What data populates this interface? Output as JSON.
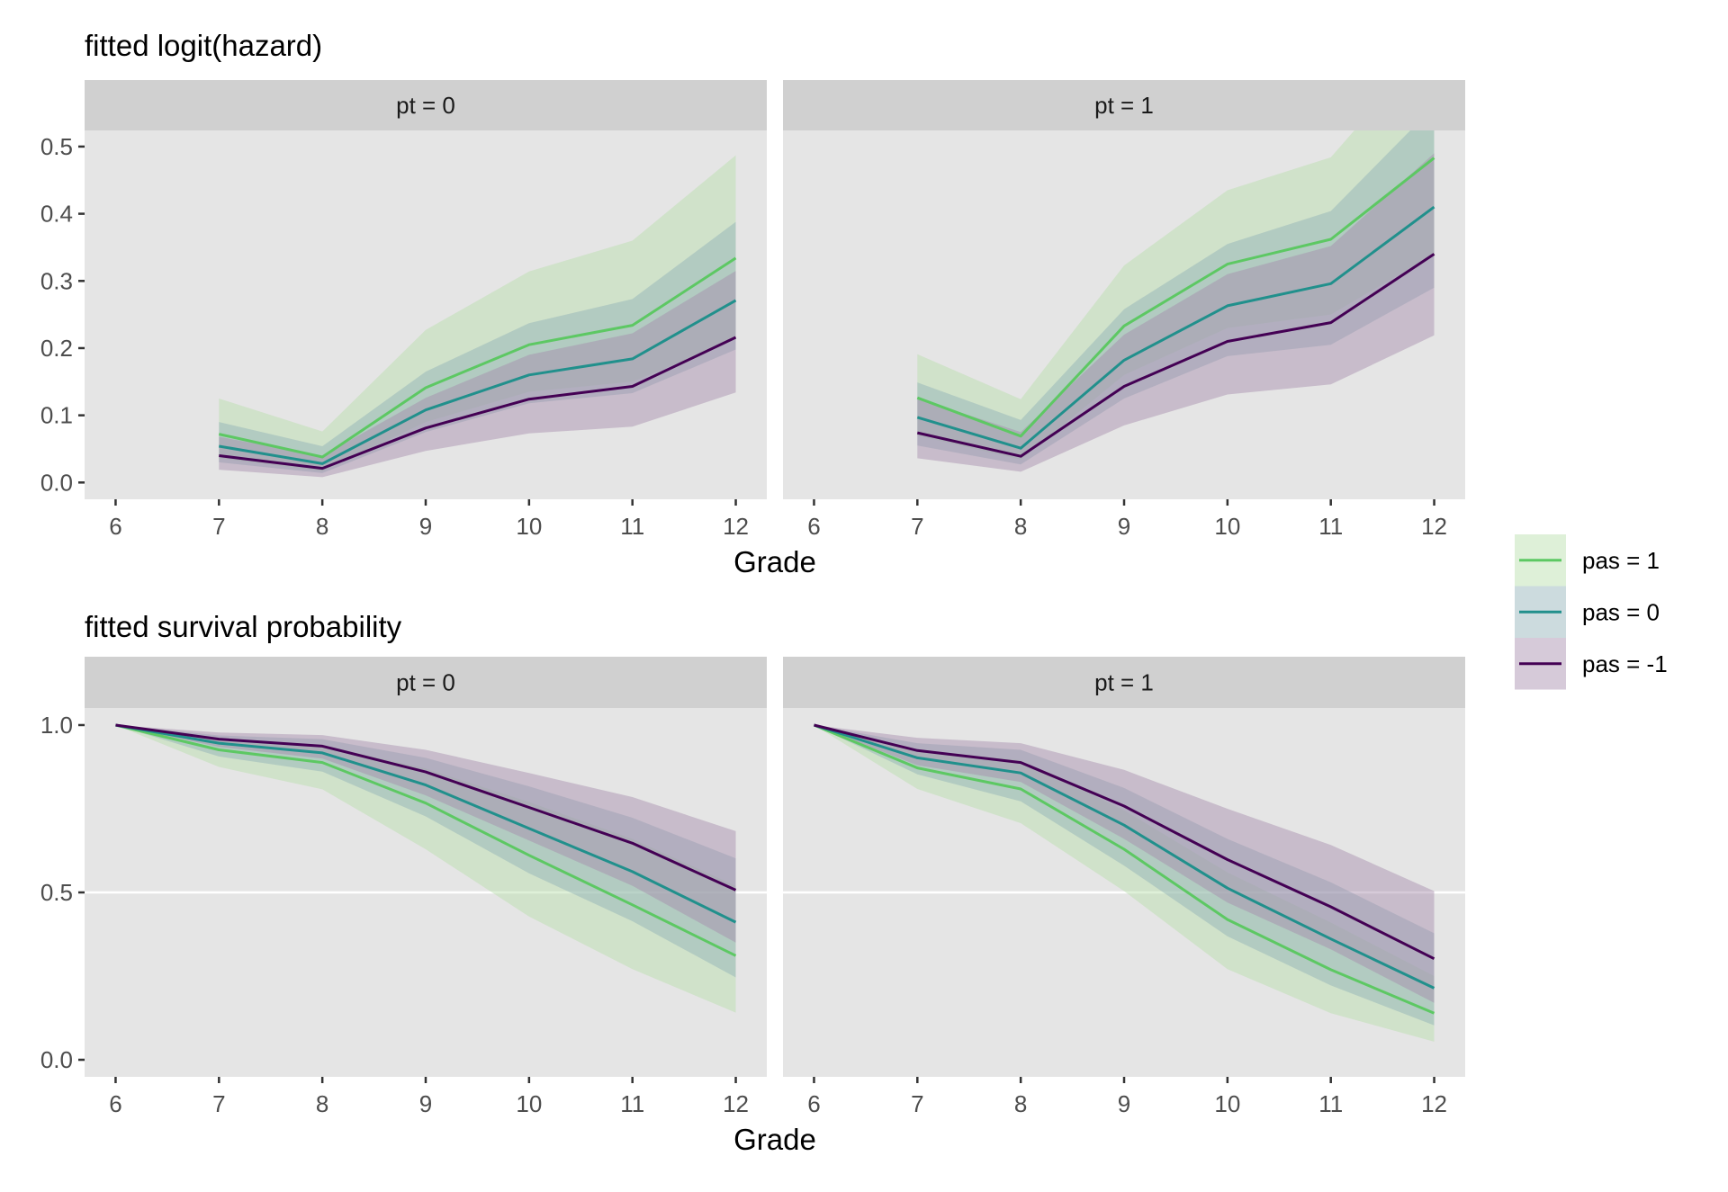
{
  "chart_data": [
    {
      "type": "line",
      "title": "fitted logit(hazard)",
      "xlabel": "Grade",
      "ylabel": "",
      "facet_variable": "pt",
      "facets": [
        "pt = 0",
        "pt = 1"
      ],
      "xlim": [
        5.7,
        12.3
      ],
      "ylim": [
        -0.025,
        0.524
      ],
      "x_ticks": [
        6,
        7,
        8,
        9,
        10,
        11,
        12
      ],
      "y_ticks": [
        0.0,
        0.1,
        0.2,
        0.3,
        0.4,
        0.5
      ],
      "y_tick_labels": [
        "0.0",
        "0.1",
        "0.2",
        "0.3",
        "0.4",
        "0.5"
      ],
      "grid": false,
      "x": [
        7,
        8,
        9,
        10,
        11,
        12
      ],
      "panels": [
        {
          "facet": "pt = 0",
          "series": [
            {
              "name": "pas = -1",
              "values": [
                0.04,
                0.021,
                0.081,
                0.124,
                0.143,
                0.216
              ],
              "lower": [
                0.019,
                0.008,
                0.047,
                0.073,
                0.083,
                0.134
              ],
              "upper": [
                0.068,
                0.04,
                0.126,
                0.19,
                0.222,
                0.315
              ]
            },
            {
              "name": "pas = 0",
              "values": [
                0.054,
                0.028,
                0.108,
                0.16,
                0.184,
                0.271
              ],
              "lower": [
                0.03,
                0.014,
                0.075,
                0.118,
                0.133,
                0.198
              ],
              "upper": [
                0.09,
                0.054,
                0.165,
                0.237,
                0.273,
                0.388
              ]
            },
            {
              "name": "pas = 1",
              "values": [
                0.072,
                0.038,
                0.141,
                0.205,
                0.234,
                0.334
              ],
              "lower": [
                0.036,
                0.017,
                0.09,
                0.135,
                0.15,
                0.213
              ],
              "upper": [
                0.125,
                0.076,
                0.227,
                0.314,
                0.36,
                0.487
              ]
            }
          ]
        },
        {
          "facet": "pt = 1",
          "series": [
            {
              "name": "pas = -1",
              "values": [
                0.074,
                0.039,
                0.143,
                0.21,
                0.238,
                0.34
              ],
              "lower": [
                0.036,
                0.016,
                0.085,
                0.131,
                0.146,
                0.219
              ],
              "upper": [
                0.125,
                0.075,
                0.22,
                0.31,
                0.352,
                0.49
              ]
            },
            {
              "name": "pas = 0",
              "values": [
                0.097,
                0.051,
                0.182,
                0.263,
                0.296,
                0.41
              ],
              "lower": [
                0.055,
                0.027,
                0.125,
                0.188,
                0.205,
                0.29
              ],
              "upper": [
                0.149,
                0.093,
                0.258,
                0.355,
                0.404,
                0.56
              ]
            },
            {
              "name": "pas = 1",
              "values": [
                0.126,
                0.069,
                0.233,
                0.325,
                0.362,
                0.483
              ],
              "lower": [
                0.07,
                0.034,
                0.16,
                0.23,
                0.25,
                0.34
              ],
              "upper": [
                0.191,
                0.124,
                0.323,
                0.435,
                0.484,
                0.66
              ]
            }
          ]
        }
      ]
    },
    {
      "type": "line",
      "title": "fitted survival probability",
      "xlabel": "Grade",
      "ylabel": "",
      "facet_variable": "pt",
      "facets": [
        "pt = 0",
        "pt = 1"
      ],
      "xlim": [
        5.7,
        12.3
      ],
      "ylim": [
        -0.051,
        1.051
      ],
      "x_ticks": [
        6,
        7,
        8,
        9,
        10,
        11,
        12
      ],
      "y_ticks": [
        0.0,
        0.5,
        1.0
      ],
      "y_tick_labels": [
        "0.0",
        "0.5",
        "1.0"
      ],
      "grid": false,
      "reference_line": 0.5,
      "x": [
        6,
        7,
        8,
        9,
        10,
        11,
        12
      ],
      "panels": [
        {
          "facet": "pt = 0",
          "series": [
            {
              "name": "pas = -1",
              "values": [
                1.0,
                0.958,
                0.937,
                0.86,
                0.754,
                0.647,
                0.507
              ],
              "lower": [
                1.0,
                0.935,
                0.9,
                0.79,
                0.655,
                0.52,
                0.35
              ],
              "upper": [
                1.0,
                0.978,
                0.97,
                0.926,
                0.857,
                0.785,
                0.683
              ]
            },
            {
              "name": "pas = 0",
              "values": [
                1.0,
                0.946,
                0.917,
                0.821,
                0.691,
                0.562,
                0.411
              ],
              "lower": [
                1.0,
                0.906,
                0.861,
                0.727,
                0.557,
                0.414,
                0.246
              ],
              "upper": [
                1.0,
                0.969,
                0.958,
                0.902,
                0.817,
                0.723,
                0.602
              ]
            },
            {
              "name": "pas = 1",
              "values": [
                1.0,
                0.926,
                0.888,
                0.767,
                0.611,
                0.463,
                0.311
              ],
              "lower": [
                1.0,
                0.875,
                0.808,
                0.629,
                0.428,
                0.271,
                0.141
              ],
              "upper": [
                1.0,
                0.96,
                0.94,
                0.87,
                0.77,
                0.66,
                0.52
              ]
            }
          ]
        },
        {
          "facet": "pt = 1",
          "series": [
            {
              "name": "pas = -1",
              "values": [
                1.0,
                0.924,
                0.888,
                0.758,
                0.598,
                0.457,
                0.302
              ],
              "lower": [
                1.0,
                0.88,
                0.83,
                0.66,
                0.47,
                0.33,
                0.17
              ],
              "upper": [
                1.0,
                0.962,
                0.946,
                0.866,
                0.75,
                0.642,
                0.504
              ]
            },
            {
              "name": "pas = 0",
              "values": [
                1.0,
                0.902,
                0.857,
                0.701,
                0.513,
                0.361,
                0.214
              ],
              "lower": [
                1.0,
                0.853,
                0.772,
                0.58,
                0.369,
                0.222,
                0.103
              ],
              "upper": [
                1.0,
                0.946,
                0.926,
                0.812,
                0.66,
                0.53,
                0.378
              ]
            },
            {
              "name": "pas = 1",
              "values": [
                1.0,
                0.872,
                0.809,
                0.629,
                0.419,
                0.269,
                0.139
              ],
              "lower": [
                1.0,
                0.809,
                0.707,
                0.504,
                0.271,
                0.139,
                0.054
              ],
              "upper": [
                1.0,
                0.925,
                0.895,
                0.745,
                0.56,
                0.41,
                0.25
              ]
            }
          ]
        }
      ]
    }
  ],
  "legend": {
    "placement": "right",
    "items": [
      {
        "label": "pas = 1",
        "color": "#5DC863"
      },
      {
        "label": "pas = 0",
        "color": "#21908C"
      },
      {
        "label": "pas = -1",
        "color": "#440154"
      }
    ]
  },
  "colors": {
    "pas = 1": "#5DC863",
    "pas = 0": "#21908C",
    "pas = -1": "#440154",
    "ribbon_pas = 1": "#B5DDA8",
    "ribbon_pas = 0": "#8FAFB5",
    "ribbon_pas = -1": "#A58AAA",
    "panel_background": "#E5E5E5",
    "strip_background": "#D0D0D0",
    "reference_line": "#FFFFFF"
  }
}
